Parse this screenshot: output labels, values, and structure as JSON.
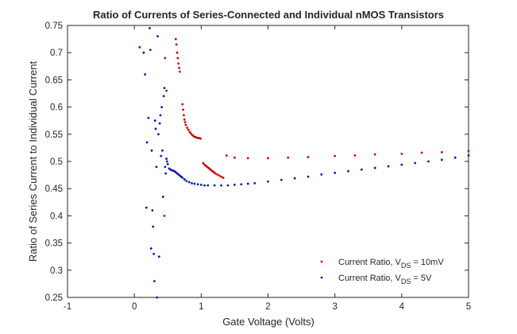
{
  "chart_data": {
    "type": "scatter",
    "title": "Ratio of Currents of Series-Connected and Individual nMOS Transistors",
    "xlabel": "Gate Voltage (Volts)",
    "ylabel": "Ratio of Series Current to Individual Current",
    "xlim": [
      -1,
      5
    ],
    "ylim": [
      0.25,
      0.75
    ],
    "xticks": [
      -1,
      0,
      1,
      2,
      3,
      4,
      5
    ],
    "xtick_labels": [
      "-1",
      "0",
      "1",
      "2",
      "3",
      "4",
      "5"
    ],
    "yticks": [
      0.25,
      0.3,
      0.35,
      0.4,
      0.45,
      0.5,
      0.55,
      0.6,
      0.65,
      0.7,
      0.75
    ],
    "ytick_labels": [
      "0.25",
      "0.3",
      "0.35",
      "0.4",
      "0.45",
      "0.5",
      "0.55",
      "0.6",
      "0.65",
      "0.7",
      "0.75"
    ],
    "grid": false,
    "legend_position": "bottom-right",
    "series": [
      {
        "label_text": "Current Ratio, V",
        "label_sub": "DS",
        "label_suffix": " = 10mV",
        "color": "#cc0000",
        "points": [
          [
            0.45,
            0.4
          ],
          [
            0.46,
            0.69
          ],
          [
            0.48,
            0.63
          ],
          [
            0.62,
            0.725
          ],
          [
            0.63,
            0.715
          ],
          [
            0.64,
            0.7
          ],
          [
            0.65,
            0.69
          ],
          [
            0.66,
            0.68
          ],
          [
            0.67,
            0.672
          ],
          [
            0.68,
            0.665
          ],
          [
            0.72,
            0.605
          ],
          [
            0.73,
            0.595
          ],
          [
            0.74,
            0.585
          ],
          [
            0.75,
            0.577
          ],
          [
            0.76,
            0.572
          ],
          [
            0.77,
            0.567
          ],
          [
            0.79,
            0.562
          ],
          [
            0.81,
            0.558
          ],
          [
            0.83,
            0.554
          ],
          [
            0.85,
            0.551
          ],
          [
            0.87,
            0.548
          ],
          [
            0.89,
            0.546
          ],
          [
            0.91,
            0.545
          ],
          [
            0.93,
            0.544
          ],
          [
            0.95,
            0.543
          ],
          [
            0.97,
            0.543
          ],
          [
            0.99,
            0.542
          ],
          [
            1.03,
            0.497
          ],
          [
            1.05,
            0.494
          ],
          [
            1.07,
            0.492
          ],
          [
            1.09,
            0.49
          ],
          [
            1.11,
            0.488
          ],
          [
            1.13,
            0.486
          ],
          [
            1.15,
            0.484
          ],
          [
            1.17,
            0.482
          ],
          [
            1.19,
            0.48
          ],
          [
            1.21,
            0.478
          ],
          [
            1.24,
            0.476
          ],
          [
            1.27,
            0.474
          ],
          [
            1.3,
            0.472
          ],
          [
            1.33,
            0.47
          ],
          [
            1.38,
            0.511
          ],
          [
            1.5,
            0.507
          ],
          [
            1.7,
            0.506
          ],
          [
            2.0,
            0.506
          ],
          [
            2.3,
            0.507
          ],
          [
            2.6,
            0.508
          ],
          [
            3.0,
            0.51
          ],
          [
            3.3,
            0.511
          ],
          [
            3.6,
            0.513
          ],
          [
            4.0,
            0.514
          ],
          [
            4.3,
            0.516
          ],
          [
            4.6,
            0.517
          ],
          [
            5.0,
            0.519
          ]
        ]
      },
      {
        "label_text": "Current Ratio, V",
        "label_sub": "DS",
        "label_suffix": " = 5V",
        "color": "#0a1aa8",
        "points": [
          [
            0.08,
            0.71
          ],
          [
            0.14,
            0.7
          ],
          [
            0.16,
            0.66
          ],
          [
            0.18,
            0.415
          ],
          [
            0.19,
            0.535
          ],
          [
            0.21,
            0.58
          ],
          [
            0.23,
            0.745
          ],
          [
            0.24,
            0.705
          ],
          [
            0.25,
            0.34
          ],
          [
            0.26,
            0.52
          ],
          [
            0.27,
            0.41
          ],
          [
            0.28,
            0.38
          ],
          [
            0.29,
            0.33
          ],
          [
            0.3,
            0.28
          ],
          [
            0.31,
            0.575
          ],
          [
            0.32,
            0.56
          ],
          [
            0.33,
            0.49
          ],
          [
            0.34,
            0.25
          ],
          [
            0.35,
            0.73
          ],
          [
            0.36,
            0.55
          ],
          [
            0.37,
            0.325
          ],
          [
            0.38,
            0.57
          ],
          [
            0.39,
            0.585
          ],
          [
            0.4,
            0.51
          ],
          [
            0.41,
            0.6
          ],
          [
            0.42,
            0.52
          ],
          [
            0.43,
            0.435
          ],
          [
            0.44,
            0.62
          ],
          [
            0.45,
            0.635
          ],
          [
            0.46,
            0.49
          ],
          [
            0.47,
            0.478
          ],
          [
            0.48,
            0.505
          ],
          [
            0.49,
            0.5
          ],
          [
            0.5,
            0.495
          ],
          [
            0.52,
            0.487
          ],
          [
            0.54,
            0.485
          ],
          [
            0.56,
            0.484
          ],
          [
            0.58,
            0.483
          ],
          [
            0.6,
            0.482
          ],
          [
            0.62,
            0.48
          ],
          [
            0.64,
            0.478
          ],
          [
            0.66,
            0.476
          ],
          [
            0.68,
            0.474
          ],
          [
            0.7,
            0.472
          ],
          [
            0.72,
            0.47
          ],
          [
            0.75,
            0.467
          ],
          [
            0.78,
            0.464
          ],
          [
            0.82,
            0.462
          ],
          [
            0.86,
            0.46
          ],
          [
            0.9,
            0.459
          ],
          [
            0.95,
            0.458
          ],
          [
            1.0,
            0.457
          ],
          [
            1.05,
            0.456
          ],
          [
            1.1,
            0.456
          ],
          [
            1.2,
            0.456
          ],
          [
            1.3,
            0.456
          ],
          [
            1.4,
            0.456
          ],
          [
            1.5,
            0.457
          ],
          [
            1.6,
            0.458
          ],
          [
            1.7,
            0.459
          ],
          [
            1.8,
            0.46
          ],
          [
            2.0,
            0.463
          ],
          [
            2.2,
            0.466
          ],
          [
            2.4,
            0.469
          ],
          [
            2.6,
            0.472
          ],
          [
            2.8,
            0.476
          ],
          [
            3.0,
            0.479
          ],
          [
            3.2,
            0.482
          ],
          [
            3.4,
            0.485
          ],
          [
            3.6,
            0.488
          ],
          [
            3.8,
            0.491
          ],
          [
            4.0,
            0.494
          ],
          [
            4.2,
            0.497
          ],
          [
            4.4,
            0.5
          ],
          [
            4.6,
            0.503
          ],
          [
            4.8,
            0.507
          ],
          [
            5.0,
            0.511
          ]
        ]
      }
    ]
  }
}
